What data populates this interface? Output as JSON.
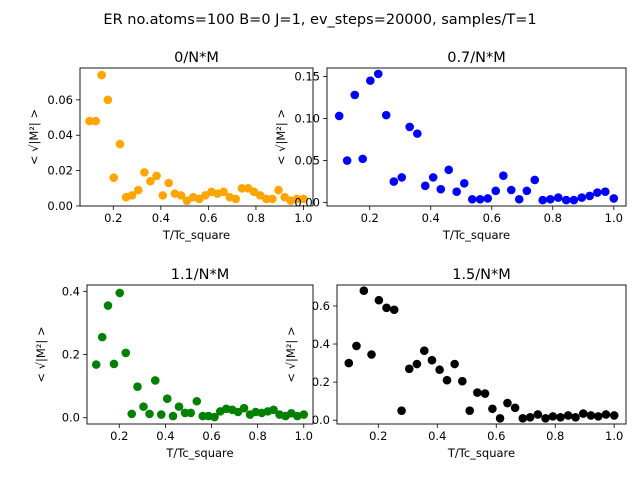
{
  "figure": {
    "suptitle": "ER no.atoms=100  B=0 J=1, ev_steps=20000, samples/T=1"
  },
  "chart_data": [
    {
      "type": "scatter",
      "title": "0/N*M",
      "xlabel": "T/Tc_square",
      "ylabel": "< √|M²| >",
      "color": "#ffa500",
      "xlim": [
        0.06,
        1.04
      ],
      "ylim": [
        0,
        0.078
      ],
      "xticks": [
        0.2,
        0.4,
        0.6,
        0.8,
        1.0
      ],
      "xtick_labels": [
        "0.2",
        "0.4",
        "0.6",
        "0.8",
        "1.0"
      ],
      "yticks": [
        0.0,
        0.02,
        0.04,
        0.06
      ],
      "ytick_labels": [
        "0.00",
        "0.02",
        "0.04",
        "0.06"
      ],
      "x": [
        0.1,
        0.126,
        0.151,
        0.177,
        0.202,
        0.228,
        0.254,
        0.279,
        0.305,
        0.331,
        0.356,
        0.382,
        0.408,
        0.433,
        0.459,
        0.485,
        0.51,
        0.536,
        0.562,
        0.587,
        0.613,
        0.638,
        0.664,
        0.69,
        0.715,
        0.741,
        0.767,
        0.792,
        0.818,
        0.844,
        0.869,
        0.895,
        0.921,
        0.946,
        0.972,
        1.0
      ],
      "y": [
        0.048,
        0.048,
        0.074,
        0.06,
        0.016,
        0.035,
        0.005,
        0.006,
        0.009,
        0.019,
        0.014,
        0.017,
        0.006,
        0.013,
        0.007,
        0.006,
        0.003,
        0.005,
        0.004,
        0.006,
        0.008,
        0.007,
        0.008,
        0.005,
        0.004,
        0.01,
        0.01,
        0.008,
        0.006,
        0.004,
        0.004,
        0.009,
        0.005,
        0.003,
        0.004,
        0.004
      ]
    },
    {
      "type": "scatter",
      "title": "0.7/N*M",
      "xlabel": "T/Tc_square",
      "ylabel": "< √|M²| >",
      "color": "#0000ff",
      "xlim": [
        0.06,
        1.04
      ],
      "ylim": [
        -0.004,
        0.16
      ],
      "xticks": [
        0.2,
        0.4,
        0.6,
        0.8,
        1.0
      ],
      "xtick_labels": [
        "0.2",
        "0.4",
        "0.6",
        "0.8",
        "1.0"
      ],
      "yticks": [
        0.0,
        0.05,
        0.1,
        0.15
      ],
      "ytick_labels": [
        "0.00",
        "0.05",
        "0.10",
        "0.15"
      ],
      "x": [
        0.1,
        0.126,
        0.151,
        0.177,
        0.202,
        0.228,
        0.254,
        0.279,
        0.305,
        0.331,
        0.356,
        0.382,
        0.408,
        0.433,
        0.459,
        0.485,
        0.51,
        0.536,
        0.562,
        0.587,
        0.613,
        0.638,
        0.664,
        0.69,
        0.715,
        0.741,
        0.767,
        0.792,
        0.818,
        0.844,
        0.869,
        0.895,
        0.921,
        0.946,
        0.972,
        1.0
      ],
      "y": [
        0.103,
        0.05,
        0.128,
        0.052,
        0.145,
        0.153,
        0.104,
        0.025,
        0.03,
        0.09,
        0.082,
        0.02,
        0.03,
        0.016,
        0.039,
        0.013,
        0.023,
        0.004,
        0.004,
        0.005,
        0.014,
        0.032,
        0.015,
        0.004,
        0.014,
        0.027,
        0.003,
        0.004,
        0.006,
        0.003,
        0.003,
        0.006,
        0.008,
        0.012,
        0.013,
        0.005
      ]
    },
    {
      "type": "scatter",
      "title": "1.1/N*M",
      "xlabel": "T/Tc_square",
      "ylabel": "< √|M²| >",
      "color": "#008000",
      "xlim": [
        0.06,
        1.04
      ],
      "ylim": [
        -0.02,
        0.42
      ],
      "xticks": [
        0.2,
        0.4,
        0.6,
        0.8,
        1.0
      ],
      "xtick_labels": [
        "0.2",
        "0.4",
        "0.6",
        "0.8",
        "1.0"
      ],
      "yticks": [
        0.0,
        0.2,
        0.4
      ],
      "ytick_labels": [
        "0.0",
        "0.2",
        "0.4"
      ],
      "x": [
        0.1,
        0.126,
        0.151,
        0.177,
        0.202,
        0.228,
        0.254,
        0.279,
        0.305,
        0.331,
        0.356,
        0.382,
        0.408,
        0.433,
        0.459,
        0.485,
        0.51,
        0.536,
        0.562,
        0.587,
        0.613,
        0.638,
        0.664,
        0.69,
        0.715,
        0.741,
        0.767,
        0.792,
        0.818,
        0.844,
        0.869,
        0.895,
        0.921,
        0.946,
        0.972,
        1.0
      ],
      "y": [
        0.168,
        0.255,
        0.355,
        0.17,
        0.395,
        0.205,
        0.012,
        0.098,
        0.035,
        0.012,
        0.118,
        0.01,
        0.06,
        0.005,
        0.035,
        0.015,
        0.015,
        0.052,
        0.005,
        0.005,
        0.002,
        0.02,
        0.028,
        0.025,
        0.018,
        0.03,
        0.01,
        0.018,
        0.015,
        0.02,
        0.025,
        0.01,
        0.005,
        0.014,
        0.005,
        0.01
      ]
    },
    {
      "type": "scatter",
      "title": "1.5/N*M",
      "xlabel": "T/Tc_square",
      "ylabel": "< √|M²| >",
      "color": "#000000",
      "xlim": [
        0.06,
        1.04
      ],
      "ylim": [
        -0.02,
        0.71
      ],
      "xticks": [
        0.2,
        0.4,
        0.6,
        0.8,
        1.0
      ],
      "xtick_labels": [
        "0.2",
        "0.4",
        "0.6",
        "0.8",
        "1.0"
      ],
      "yticks": [
        0.0,
        0.2,
        0.4,
        0.6
      ],
      "ytick_labels": [
        "0.0",
        "0.2",
        "0.4",
        "0.6"
      ],
      "x": [
        0.1,
        0.126,
        0.151,
        0.177,
        0.202,
        0.228,
        0.254,
        0.279,
        0.305,
        0.331,
        0.356,
        0.382,
        0.408,
        0.433,
        0.459,
        0.485,
        0.51,
        0.536,
        0.562,
        0.587,
        0.613,
        0.638,
        0.664,
        0.69,
        0.715,
        0.741,
        0.767,
        0.792,
        0.818,
        0.844,
        0.869,
        0.895,
        0.921,
        0.946,
        0.972,
        1.0
      ],
      "y": [
        0.3,
        0.39,
        0.68,
        0.345,
        0.63,
        0.59,
        0.58,
        0.05,
        0.27,
        0.295,
        0.365,
        0.315,
        0.265,
        0.21,
        0.295,
        0.205,
        0.05,
        0.145,
        0.14,
        0.06,
        0.01,
        0.09,
        0.065,
        0.01,
        0.015,
        0.03,
        0.01,
        0.02,
        0.015,
        0.025,
        0.015,
        0.035,
        0.025,
        0.02,
        0.03,
        0.025
      ]
    }
  ]
}
